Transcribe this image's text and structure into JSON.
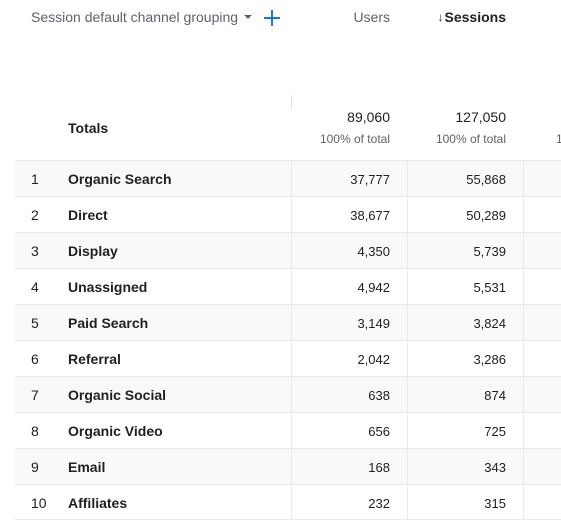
{
  "header": {
    "dimension_label": "Session default channel grouping",
    "users_label": "Users",
    "sessions_label": "Sessions",
    "sort_arrow": "↓"
  },
  "totals": {
    "label": "Totals",
    "users": "89,060",
    "users_sub": "100% of total",
    "sessions": "127,050",
    "sessions_sub": "100% of total",
    "next_col_truncated": "1"
  },
  "rows": [
    {
      "rank": "1",
      "channel": "Organic Search",
      "users": "37,777",
      "sessions": "55,868"
    },
    {
      "rank": "2",
      "channel": "Direct",
      "users": "38,677",
      "sessions": "50,289"
    },
    {
      "rank": "3",
      "channel": "Display",
      "users": "4,350",
      "sessions": "5,739"
    },
    {
      "rank": "4",
      "channel": "Unassigned",
      "users": "4,942",
      "sessions": "5,531"
    },
    {
      "rank": "5",
      "channel": "Paid Search",
      "users": "3,149",
      "sessions": "3,824"
    },
    {
      "rank": "6",
      "channel": "Referral",
      "users": "2,042",
      "sessions": "3,286"
    },
    {
      "rank": "7",
      "channel": "Organic Social",
      "users": "638",
      "sessions": "874"
    },
    {
      "rank": "8",
      "channel": "Organic Video",
      "users": "656",
      "sessions": "725"
    },
    {
      "rank": "9",
      "channel": "Email",
      "users": "168",
      "sessions": "343"
    },
    {
      "rank": "10",
      "channel": "Affiliates",
      "users": "232",
      "sessions": "315"
    }
  ],
  "colors": {
    "accent": "#1a73e8",
    "row_shade": "#f8f9fa",
    "border": "#e8eaed"
  }
}
